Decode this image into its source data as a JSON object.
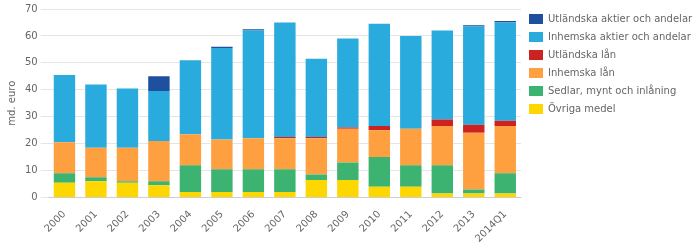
{
  "chart_data": {
    "type": "bar",
    "stacked": true,
    "ylabel": "md. euro",
    "categories": [
      "2000",
      "2001",
      "2002",
      "2003",
      "2004",
      "2005",
      "2006",
      "2007",
      "2008",
      "2009",
      "2010",
      "2011",
      "2012",
      "2013",
      "2014Q1"
    ],
    "series": [
      {
        "name": "Övriga medel",
        "color": "#FFD700",
        "values": [
          5.5,
          6.0,
          5.5,
          4.5,
          2.0,
          2.0,
          2.0,
          2.0,
          6.5,
          6.5,
          4.0,
          4.0,
          1.5,
          1.5,
          1.5
        ]
      },
      {
        "name": "Sedlar, mynt och inlåning",
        "color": "#3CB371",
        "values": [
          3.5,
          1.5,
          0.5,
          1.5,
          10.0,
          8.5,
          8.5,
          8.5,
          2.0,
          6.5,
          11.0,
          8.0,
          10.5,
          1.5,
          7.5
        ]
      },
      {
        "name": "Inhemska lån",
        "color": "#FFA040",
        "values": [
          11.5,
          11.0,
          12.5,
          15.0,
          11.5,
          11.0,
          11.5,
          11.5,
          13.5,
          12.5,
          10.0,
          13.5,
          14.5,
          21.0,
          17.5
        ]
      },
      {
        "name": "Utländska lån",
        "color": "#CC2222",
        "values": [
          0.0,
          0.0,
          0.0,
          0.0,
          0.0,
          0.0,
          0.0,
          0.5,
          0.5,
          0.5,
          1.5,
          0.0,
          2.5,
          3.0,
          2.0
        ]
      },
      {
        "name": "Inhemska aktier och andelar",
        "color": "#29ABDD",
        "values": [
          25.0,
          23.5,
          22.0,
          18.5,
          27.5,
          34.0,
          40.0,
          42.5,
          29.0,
          33.0,
          38.0,
          34.5,
          33.0,
          36.5,
          36.5
        ]
      },
      {
        "name": "Utländska aktier och andelar",
        "color": "#1F4F9F",
        "values": [
          0.0,
          0.0,
          0.0,
          5.5,
          0.0,
          0.5,
          0.5,
          0.0,
          0.0,
          0.0,
          0.0,
          0.0,
          0.0,
          0.5,
          0.5
        ]
      }
    ],
    "ylim": [
      0,
      70
    ],
    "yticks": [
      0,
      10,
      20,
      30,
      40,
      50,
      60,
      70
    ],
    "grid": true,
    "legend": "right"
  }
}
